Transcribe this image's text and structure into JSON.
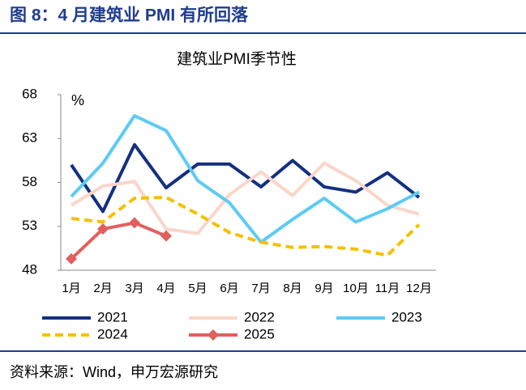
{
  "header": {
    "title": "图 8：4 月建筑业 PMI 有所回落"
  },
  "source": "资料来源：Wind，申万宏源研究",
  "chart_data": {
    "type": "line",
    "title": "建筑业PMI季节性",
    "y_label": "%",
    "categories": [
      "1月",
      "2月",
      "3月",
      "4月",
      "5月",
      "6月",
      "7月",
      "8月",
      "9月",
      "10月",
      "11月",
      "12月"
    ],
    "ylim": [
      48,
      68
    ],
    "yticks": [
      48,
      53,
      58,
      63,
      68
    ],
    "grid": false,
    "series": [
      {
        "name": "2021",
        "color": "#14307f",
        "values": [
          60.0,
          54.7,
          62.3,
          57.4,
          60.1,
          60.1,
          57.5,
          60.5,
          57.5,
          56.9,
          59.1,
          56.3
        ]
      },
      {
        "name": "2022",
        "color": "#fad6c8",
        "values": [
          55.4,
          57.6,
          58.1,
          52.7,
          52.2,
          56.6,
          59.2,
          56.5,
          60.2,
          58.2,
          55.4,
          54.4
        ]
      },
      {
        "name": "2023",
        "color": "#5ccbf5",
        "values": [
          56.4,
          60.2,
          65.6,
          63.9,
          58.2,
          55.7,
          51.2,
          53.8,
          56.2,
          53.5,
          55.0,
          56.9
        ]
      },
      {
        "name": "2024",
        "color": "#f5c000",
        "dashed": true,
        "values": [
          53.9,
          53.5,
          56.2,
          56.3,
          54.4,
          52.3,
          51.2,
          50.6,
          50.7,
          50.4,
          49.7,
          53.2
        ]
      },
      {
        "name": "2025",
        "color": "#e0605e",
        "marker": "diamond",
        "values": [
          49.3,
          52.7,
          53.4,
          51.9,
          null,
          null,
          null,
          null,
          null,
          null,
          null,
          null
        ]
      }
    ]
  }
}
